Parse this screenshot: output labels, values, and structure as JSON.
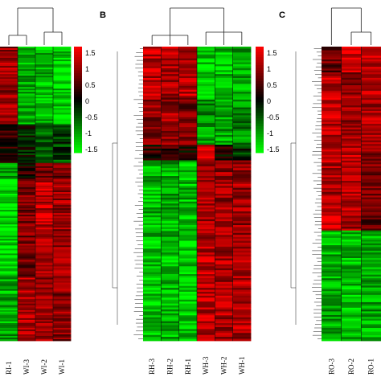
{
  "chart_data": [
    {
      "type": "heatmap",
      "panel_label": "",
      "columns": [
        "RI-1",
        "WI-3",
        "WI-2",
        "WI-1"
      ],
      "row_blocks": [
        {
          "rows": 48,
          "values": [
            0.9,
            -1.0,
            -1.1,
            -1.2
          ]
        },
        {
          "rows": 24,
          "values": [
            0.3,
            -0.2,
            -0.6,
            -0.4
          ]
        },
        {
          "rows": 10,
          "values": [
            -0.8,
            0.2,
            0.6,
            0.7
          ]
        },
        {
          "rows": 60,
          "values": [
            -1.3,
            0.7,
            1.1,
            0.9
          ]
        },
        {
          "rows": 40,
          "values": [
            -1.0,
            1.0,
            0.9,
            0.8
          ]
        }
      ]
    },
    {
      "type": "heatmap",
      "panel_label": "B",
      "columns": [
        "RH-3",
        "RH-2",
        "RH-1",
        "WH-3",
        "WH-2",
        "WH-1"
      ],
      "row_blocks": [
        {
          "rows": 26,
          "values": [
            1.1,
            1.0,
            1.1,
            -1.2,
            -1.1,
            -1.0
          ]
        },
        {
          "rows": 24,
          "values": [
            0.8,
            0.9,
            0.7,
            -0.9,
            -1.0,
            -0.8
          ]
        },
        {
          "rows": 8,
          "values": [
            0.2,
            0.3,
            0.2,
            1.2,
            0.1,
            -0.3
          ]
        },
        {
          "rows": 40,
          "values": [
            -1.1,
            -1.0,
            -1.1,
            1.0,
            0.9,
            0.9
          ]
        },
        {
          "rows": 52,
          "values": [
            -1.2,
            -1.1,
            -1.2,
            1.1,
            1.0,
            1.0
          ]
        }
      ]
    },
    {
      "type": "heatmap",
      "panel_label": "C",
      "columns": [
        "RO-3",
        "RO-2",
        "RO-1"
      ],
      "row_blocks": [
        {
          "rows": 14,
          "values": [
            0.6,
            1.2,
            1.1
          ]
        },
        {
          "rows": 36,
          "values": [
            1.1,
            0.9,
            1.0
          ]
        },
        {
          "rows": 40,
          "values": [
            1.0,
            1.1,
            0.8
          ]
        },
        {
          "rows": 10,
          "values": [
            1.4,
            0.9,
            0.6
          ]
        },
        {
          "rows": 60,
          "values": [
            -1.0,
            -1.1,
            -1.0
          ]
        }
      ]
    }
  ],
  "color_scale": {
    "ticks": [
      "1.5",
      "1",
      "0.5",
      "0",
      "-0.5",
      "-1",
      "-1.5"
    ],
    "colors": {
      "high": "#ff0000",
      "mid": "#000000",
      "low": "#00ff00"
    }
  }
}
